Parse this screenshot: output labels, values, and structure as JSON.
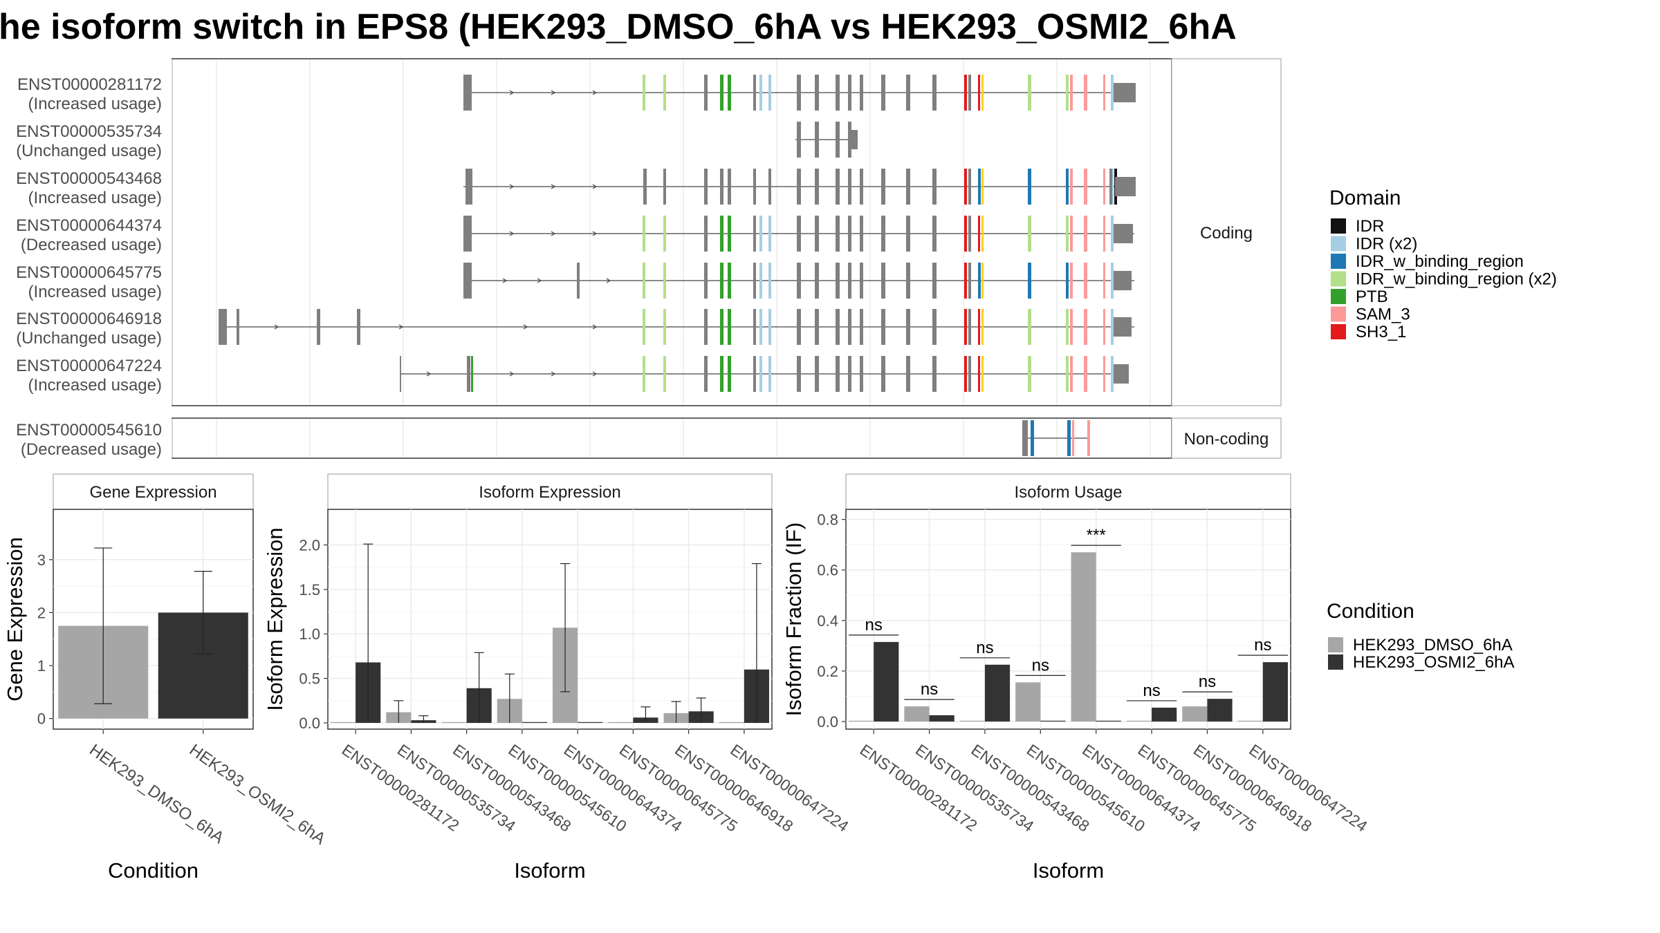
{
  "title": "he isoform switch in EPS8 (HEK293_DMSO_6hA vs HEK293_OSMI2_6hA",
  "colors": {
    "dmso": "#a6a6a6",
    "osmi": "#333333",
    "exon": "#7f7f7f",
    "IDR": "#111111",
    "IDR (x2)": "#a6cee3",
    "IDR_w_binding_region": "#1f78b4",
    "IDR_w_binding_region (x2)": "#b2df8a",
    "PTB": "#33a02c",
    "SAM_3": "#fb9a99",
    "SH3_1": "#e31a1c",
    "yellow": "#ffd400"
  },
  "structure": {
    "coding_label": "Coding",
    "noncoding_label": "Non-coding",
    "coding_transcripts": [
      {
        "id": "ENST00000281172",
        "usage": "(Increased usage)"
      },
      {
        "id": "ENST00000535734",
        "usage": "(Unchanged usage)"
      },
      {
        "id": "ENST00000543468",
        "usage": "(Increased usage)"
      },
      {
        "id": "ENST00000644374",
        "usage": "(Decreased usage)"
      },
      {
        "id": "ENST00000645775",
        "usage": "(Increased usage)"
      },
      {
        "id": "ENST00000646918",
        "usage": "(Unchanged usage)"
      },
      {
        "id": "ENST00000647224",
        "usage": "(Increased usage)"
      }
    ],
    "noncoding_transcripts": [
      {
        "id": "ENST00000545610",
        "usage": "(Decreased usage)"
      }
    ]
  },
  "legend_domain": {
    "title": "Domain",
    "items": [
      "IDR",
      "IDR (x2)",
      "IDR_w_binding_region",
      "IDR_w_binding_region (x2)",
      "PTB",
      "SAM_3",
      "SH3_1"
    ]
  },
  "legend_condition": {
    "title": "Condition",
    "items": [
      "HEK293_DMSO_6hA",
      "HEK293_OSMI2_6hA"
    ]
  },
  "chart_data": [
    {
      "type": "bar",
      "title": "Gene Expression",
      "xlabel": "Condition",
      "ylabel": "Gene Expression",
      "categories": [
        "HEK293_DMSO_6hA",
        "HEK293_OSMI2_6hA"
      ],
      "values": [
        1.75,
        2.0
      ],
      "err_low": [
        0.28,
        1.22
      ],
      "err_high": [
        3.22,
        2.78
      ],
      "ylim": [
        -0.2,
        3.95
      ],
      "yticks": [
        0,
        1,
        2,
        3
      ]
    },
    {
      "type": "bar",
      "title": "Isoform Expression",
      "xlabel": "Isoform",
      "ylabel": "Isoform Expression",
      "categories": [
        "ENST00000281172",
        "ENST00000535734",
        "ENST00000543468",
        "ENST00000545610",
        "ENST00000644374",
        "ENST00000645775",
        "ENST00000646918",
        "ENST00000647224"
      ],
      "series": [
        {
          "name": "HEK293_DMSO_6hA",
          "values": [
            0.0,
            0.12,
            0.0,
            0.27,
            1.07,
            0.0,
            0.11,
            0.0
          ],
          "err_low": [
            0.0,
            0.0,
            0.0,
            0.0,
            0.35,
            0.0,
            0.0,
            0.0
          ],
          "err_high": [
            0.0,
            0.25,
            0.0,
            0.55,
            1.79,
            0.0,
            0.24,
            0.0
          ]
        },
        {
          "name": "HEK293_OSMI2_6hA",
          "values": [
            0.68,
            0.03,
            0.39,
            0.0,
            0.0,
            0.06,
            0.13,
            0.6
          ],
          "err_low": [
            0.0,
            0.0,
            0.0,
            0.0,
            0.0,
            0.0,
            0.0,
            0.0
          ],
          "err_high": [
            2.01,
            0.08,
            0.79,
            0.0,
            0.0,
            0.18,
            0.28,
            1.79
          ]
        }
      ],
      "ylim": [
        -0.07,
        2.4
      ],
      "yticks": [
        0.0,
        0.5,
        1.0,
        1.5,
        2.0
      ]
    },
    {
      "type": "bar",
      "title": "Isoform Usage",
      "xlabel": "Isoform",
      "ylabel": "Isoform Fraction (IF)",
      "categories": [
        "ENST00000281172",
        "ENST00000535734",
        "ENST00000543468",
        "ENST00000545610",
        "ENST00000644374",
        "ENST00000645775",
        "ENST00000646918",
        "ENST00000647224"
      ],
      "series": [
        {
          "name": "HEK293_DMSO_6hA",
          "values": [
            0.0,
            0.06,
            0.0,
            0.155,
            0.67,
            0.0,
            0.06,
            0.0
          ]
        },
        {
          "name": "HEK293_OSMI2_6hA",
          "values": [
            0.315,
            0.025,
            0.225,
            0.0,
            0.0,
            0.055,
            0.09,
            0.235
          ]
        }
      ],
      "annotations": [
        "ns",
        "ns",
        "ns",
        "ns",
        "***",
        "ns",
        "ns",
        "ns"
      ],
      "ylim": [
        -0.03,
        0.84
      ],
      "yticks": [
        0.0,
        0.2,
        0.4,
        0.6,
        0.8
      ]
    }
  ]
}
